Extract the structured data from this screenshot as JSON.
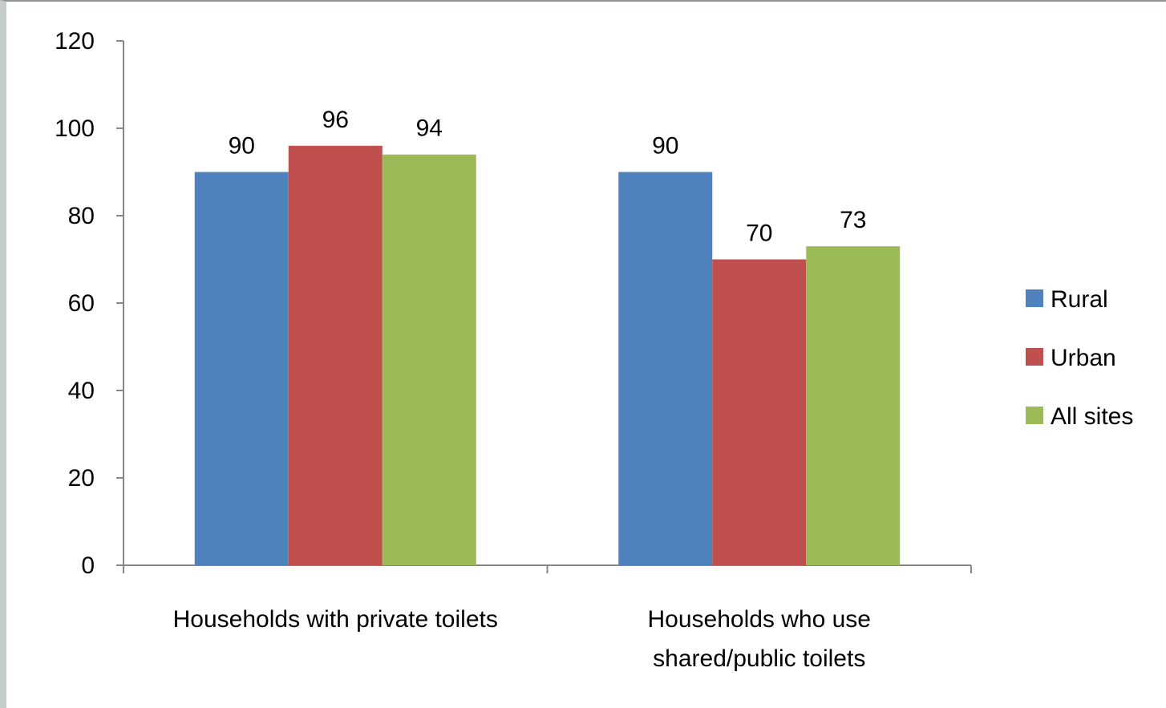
{
  "chart_data": {
    "type": "bar",
    "categories": [
      [
        "Households with private toilets"
      ],
      [
        "Households who use",
        "shared/public toilets"
      ]
    ],
    "series": [
      {
        "name": "Rural",
        "values": [
          90,
          90
        ],
        "color": "#4f81bd",
        "labels": [
          "90",
          "90"
        ]
      },
      {
        "name": "Urban",
        "values": [
          96,
          70
        ],
        "color": "#c0504d",
        "labels": [
          "96",
          "70"
        ]
      },
      {
        "name": "All sites",
        "values": [
          94,
          73
        ],
        "color": "#9bbb59",
        "labels": [
          "94",
          "73"
        ]
      }
    ],
    "ylim": [
      0,
      120
    ],
    "yticks": [
      0,
      20,
      40,
      60,
      80,
      100,
      120
    ],
    "title": "",
    "xlabel": "",
    "ylabel": "",
    "legend": "right",
    "grid": false
  }
}
